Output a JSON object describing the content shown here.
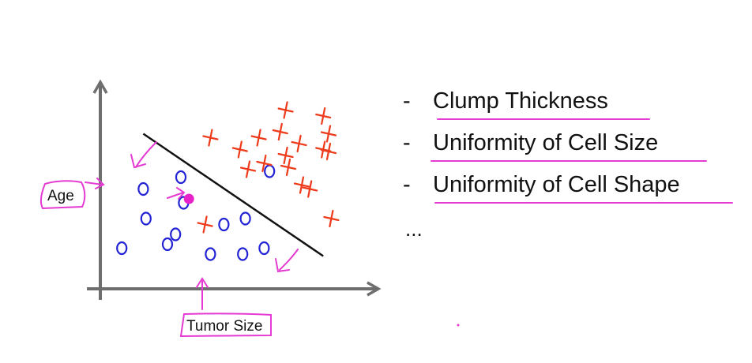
{
  "chart_data": {
    "type": "scatter",
    "title": "",
    "xlabel": "Tumor Size",
    "ylabel": "Age",
    "grid": false,
    "legend": "none",
    "xlim": [
      0,
      10
    ],
    "ylim": [
      0,
      10
    ],
    "series": [
      {
        "marker": "o",
        "color": "#2323d6",
        "points": [
          [
            0.8,
            1.9
          ],
          [
            1.6,
            4.9
          ],
          [
            1.7,
            3.4
          ],
          [
            2.5,
            2.1
          ],
          [
            2.8,
            2.6
          ],
          [
            3.0,
            5.5
          ],
          [
            3.1,
            4.2
          ],
          [
            4.1,
            1.6
          ],
          [
            4.6,
            3.1
          ],
          [
            5.4,
            3.4
          ],
          [
            5.3,
            1.6
          ],
          [
            6.1,
            1.9
          ],
          [
            6.3,
            5.8
          ]
        ]
      },
      {
        "marker": "x",
        "color": "#ee3b1c",
        "points": [
          [
            3.9,
            3.1
          ],
          [
            4.1,
            7.5
          ],
          [
            5.2,
            6.9
          ],
          [
            5.5,
            5.9
          ],
          [
            5.9,
            7.5
          ],
          [
            6.7,
            7.8
          ],
          [
            6.9,
            6.6
          ],
          [
            7.0,
            6.0
          ],
          [
            6.1,
            6.2
          ],
          [
            7.5,
            5.1
          ],
          [
            7.4,
            7.2
          ],
          [
            7.8,
            4.9
          ],
          [
            8.3,
            6.9
          ],
          [
            8.3,
            8.6
          ],
          [
            8.5,
            6.8
          ],
          [
            8.5,
            7.7
          ],
          [
            8.6,
            3.4
          ],
          [
            6.9,
            8.9
          ]
        ]
      }
    ],
    "query_point": {
      "x": 3.3,
      "y": 4.4,
      "color": "#e822c8"
    },
    "decision_boundary": {
      "x": [
        1.6,
        8.3
      ],
      "y": [
        7.7,
        1.5
      ],
      "color": "#111111"
    }
  },
  "features": [
    {
      "dash": "-",
      "text": "Clump Thickness"
    },
    {
      "dash": "-",
      "text": "Uniformity of Cell Size"
    },
    {
      "dash": "-",
      "text": "Uniformity of Cell Shape"
    }
  ],
  "ellipsis": "...",
  "colors": {
    "annotation": "#e53bd2",
    "axis": "#6e6e6e",
    "ink": "#111111"
  }
}
